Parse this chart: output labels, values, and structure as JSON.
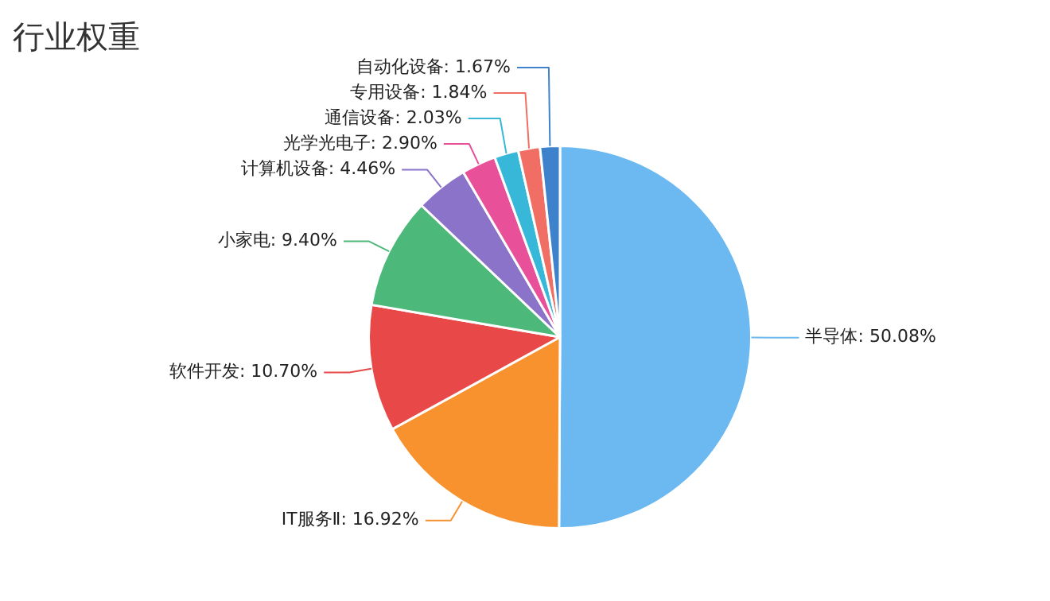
{
  "chart_data": {
    "type": "pie",
    "title": "行业权重",
    "categories": [
      "半导体",
      "IT服务Ⅱ",
      "软件开发",
      "小家电",
      "计算机设备",
      "光学光电子",
      "通信设备",
      "专用设备",
      "自动化设备"
    ],
    "values": [
      50.08,
      16.92,
      10.7,
      9.4,
      4.46,
      2.9,
      2.03,
      1.84,
      1.67
    ],
    "value_labels": [
      "50.08%",
      "16.92%",
      "10.70%",
      "9.40%",
      "4.46%",
      "2.90%",
      "2.03%",
      "1.84%",
      "1.67%"
    ],
    "colors": [
      "#6cb8f0",
      "#f7922e",
      "#e84848",
      "#4cb87a",
      "#8a73c9",
      "#e8509a",
      "#38b8d8",
      "#f06e64",
      "#3f82cc"
    ],
    "legend": false
  }
}
